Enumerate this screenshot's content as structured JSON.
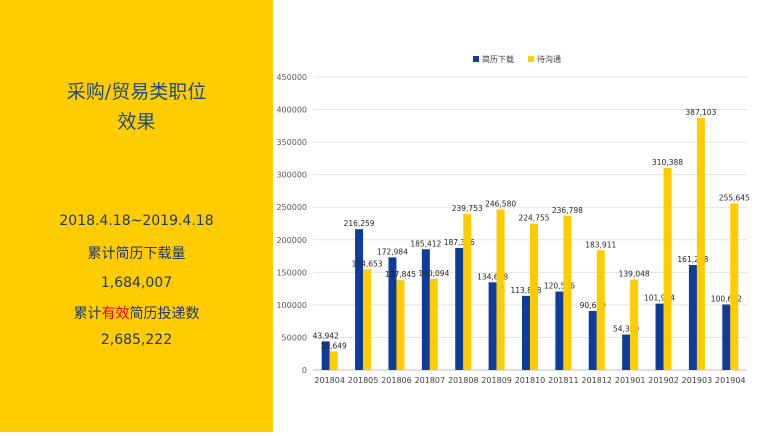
{
  "left": {
    "heading_line1": "采购/贸易类职位",
    "heading_line2": "效果",
    "date_range": "2018.4.18~2019.4.18",
    "downloads_label": "累计简历下载量",
    "downloads_value": "1,684,007",
    "submissions_label_prefix": "累计",
    "submissions_label_highlight": "有效",
    "submissions_label_suffix": "简历投递数",
    "submissions_value": "2,685,222"
  },
  "colors": {
    "panel_bg": "#FFCC00",
    "series_download": "#0D3C9B",
    "series_pending": "#FFCC00",
    "highlight": "#E60012"
  },
  "chart_data": {
    "type": "bar",
    "categories": [
      "201804",
      "201805",
      "201806",
      "201807",
      "201808",
      "201809",
      "201810",
      "201811",
      "201812",
      "201901",
      "201902",
      "201903",
      "201904"
    ],
    "series": [
      {
        "name": "简历下载",
        "color": "#0D3C9B",
        "values": [
          43942,
          216259,
          172984,
          185412,
          187356,
          134678,
          113868,
          120526,
          90679,
          54369,
          101994,
          161298,
          100642
        ],
        "labels": [
          "43,942",
          "216,259",
          "172,984",
          "185,412",
          "187,356",
          "134,678",
          "113,868",
          "120,526",
          "90,679",
          "54,369",
          "101,994",
          "161,298",
          "100,642"
        ]
      },
      {
        "name": "待沟通",
        "color": "#FFCC00",
        "values": [
          28649,
          154653,
          137845,
          140094,
          239753,
          246580,
          224755,
          236798,
          183911,
          139048,
          310388,
          387103,
          255645
        ],
        "labels": [
          "28,649",
          "154,653",
          "137,845",
          "140,094",
          "239,753",
          "246,580",
          "224,755",
          "236,798",
          "183,911",
          "139,048",
          "310,388",
          "387,103",
          "255,645"
        ]
      }
    ],
    "ylim": [
      0,
      450000
    ],
    "yticks": [
      "0",
      "50000",
      "100000",
      "150000",
      "200000",
      "250000",
      "300000",
      "350000",
      "400000",
      "450000"
    ],
    "grid": true,
    "legend_position": "top-center"
  }
}
